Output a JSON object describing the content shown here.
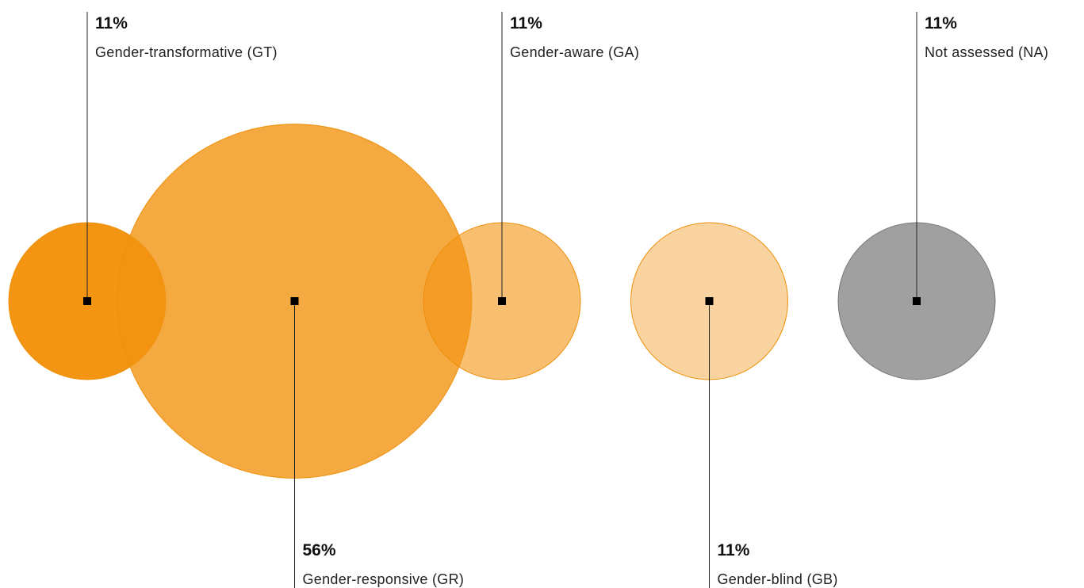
{
  "chart_data": {
    "type": "bubble",
    "categories": [
      "Gender-transformative (GT)",
      "Gender-responsive (GR)",
      "Gender-aware (GA)",
      "Gender-blind (GB)",
      "Not assessed (NA)"
    ],
    "values": [
      11,
      56,
      11,
      11,
      11
    ],
    "value_labels": [
      "11%",
      "56%",
      "11%",
      "11%",
      "11%"
    ],
    "colors": [
      "#f39412",
      "#f39412cc",
      "#f3941299",
      "#f3941266",
      "#a0a0a0"
    ]
  }
}
